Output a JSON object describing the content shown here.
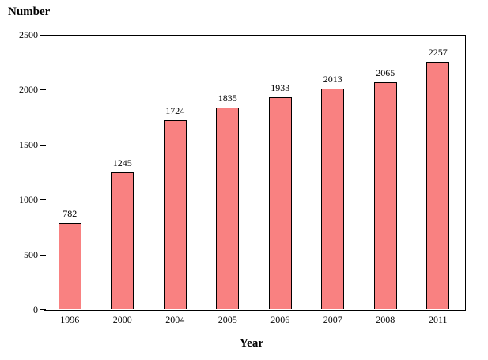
{
  "chart_data": {
    "type": "bar",
    "title": "Number",
    "xlabel": "Year",
    "ylabel": "Number",
    "categories": [
      "1996",
      "2000",
      "2004",
      "2005",
      "2006",
      "2007",
      "2008",
      "2011"
    ],
    "values": [
      782,
      1245,
      1724,
      1835,
      1933,
      2013,
      2065,
      2257
    ],
    "ylim": [
      0,
      2500
    ],
    "yticks": [
      0,
      500,
      1000,
      1500,
      2000,
      2500
    ],
    "grid": false,
    "legend": false,
    "data_labels": true,
    "bar_color": "#F98181",
    "bar_border_color": "#000000",
    "axis_color": "#000000",
    "text_color": "#000000",
    "background_color": "#FFFFFF"
  }
}
